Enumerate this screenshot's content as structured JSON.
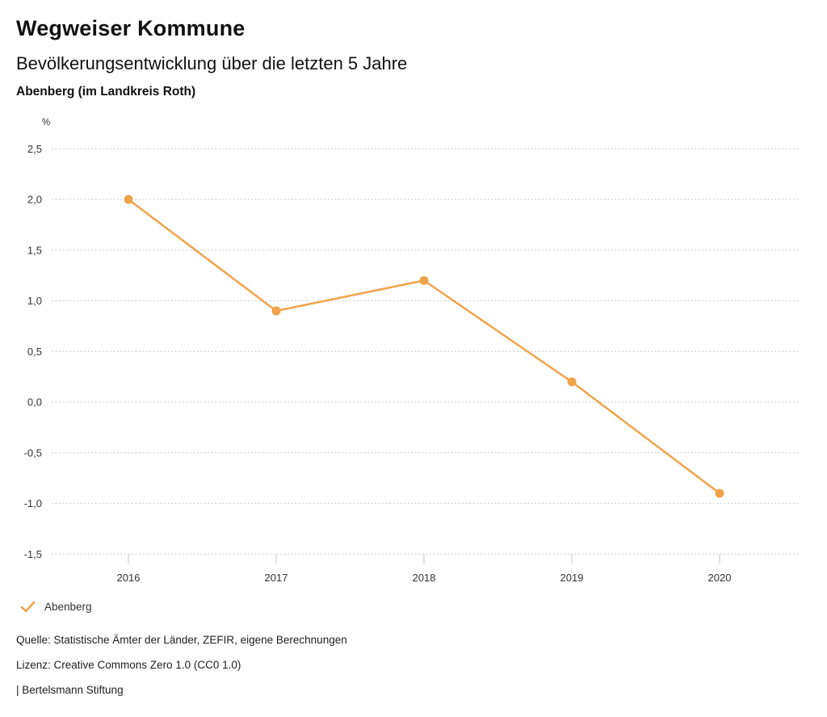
{
  "header": {
    "title": "Wegweiser Kommune",
    "subtitle": "Bevölkerungsentwicklung über die letzten 5 Jahre",
    "region": "Abenberg (im Landkreis Roth)"
  },
  "chart_data": {
    "type": "line",
    "x": [
      2016,
      2017,
      2018,
      2019,
      2020
    ],
    "x_tick_labels": [
      "2016",
      "2017",
      "2018",
      "2019",
      "2020"
    ],
    "series": [
      {
        "name": "Abenberg",
        "values": [
          2.0,
          0.9,
          1.2,
          0.2,
          -0.9
        ],
        "color": "#F0A34A"
      }
    ],
    "title": "Bevölkerungsentwicklung über die letzten 5 Jahre",
    "xlabel": "",
    "ylabel": "%",
    "ylim": [
      -1.5,
      2.5
    ],
    "y_tick_step": 0.5,
    "y_tick_labels": [
      "2,5",
      "2,0",
      "1,5",
      "1,0",
      "0,5",
      "0,0",
      "-0,5",
      "-1,0",
      "-1,5"
    ],
    "grid": "horizontal-dotted",
    "legend_position": "bottom-left"
  },
  "legend": {
    "items": [
      {
        "label": "Abenberg",
        "color": "#F0A34A",
        "checked": true
      }
    ]
  },
  "footer": {
    "source": "Quelle: Statistische Ämter der Länder, ZEFIR, eigene Berechnungen",
    "license": "Lizenz: Creative Commons Zero 1.0 (CC0 1.0)",
    "attribution": "| Bertelsmann Stiftung"
  },
  "colors": {
    "accent": "#F0A34A",
    "gridline": "#C8C8C8",
    "text": "#333333"
  }
}
